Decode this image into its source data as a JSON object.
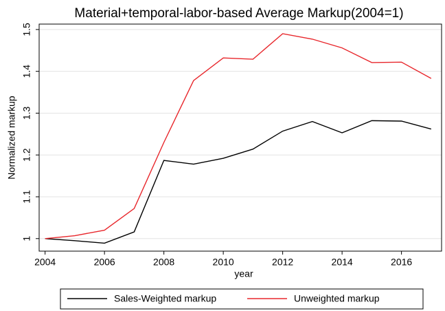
{
  "chart_data": {
    "type": "line",
    "title": "Material+temporal-labor-based Average Markup(2004=1)",
    "x_label": "year",
    "y_label": "Normalized markup",
    "x": [
      2004,
      2005,
      2006,
      2007,
      2008,
      2009,
      2010,
      2011,
      2012,
      2013,
      2014,
      2015,
      2016,
      2017
    ],
    "series": [
      {
        "name": "Sales-Weighted markup",
        "color": "#000000",
        "values": [
          1.0,
          0.995,
          0.989,
          1.016,
          1.187,
          1.178,
          1.192,
          1.214,
          1.257,
          1.28,
          1.253,
          1.282,
          1.281,
          1.262
        ]
      },
      {
        "name": "Unweighted markup",
        "color": "#e8262b",
        "values": [
          1.0,
          1.007,
          1.02,
          1.072,
          1.23,
          1.378,
          1.432,
          1.429,
          1.49,
          1.477,
          1.456,
          1.421,
          1.422,
          1.383
        ]
      }
    ],
    "xlim": [
      2003.8,
      2017.35
    ],
    "xticks": [
      2004,
      2006,
      2008,
      2010,
      2012,
      2014,
      2016
    ],
    "ylim": [
      0.97,
      1.513
    ],
    "yticks": [
      1,
      1.1,
      1.2,
      1.3,
      1.4,
      1.5
    ],
    "grid": true,
    "legend": "bottom"
  }
}
